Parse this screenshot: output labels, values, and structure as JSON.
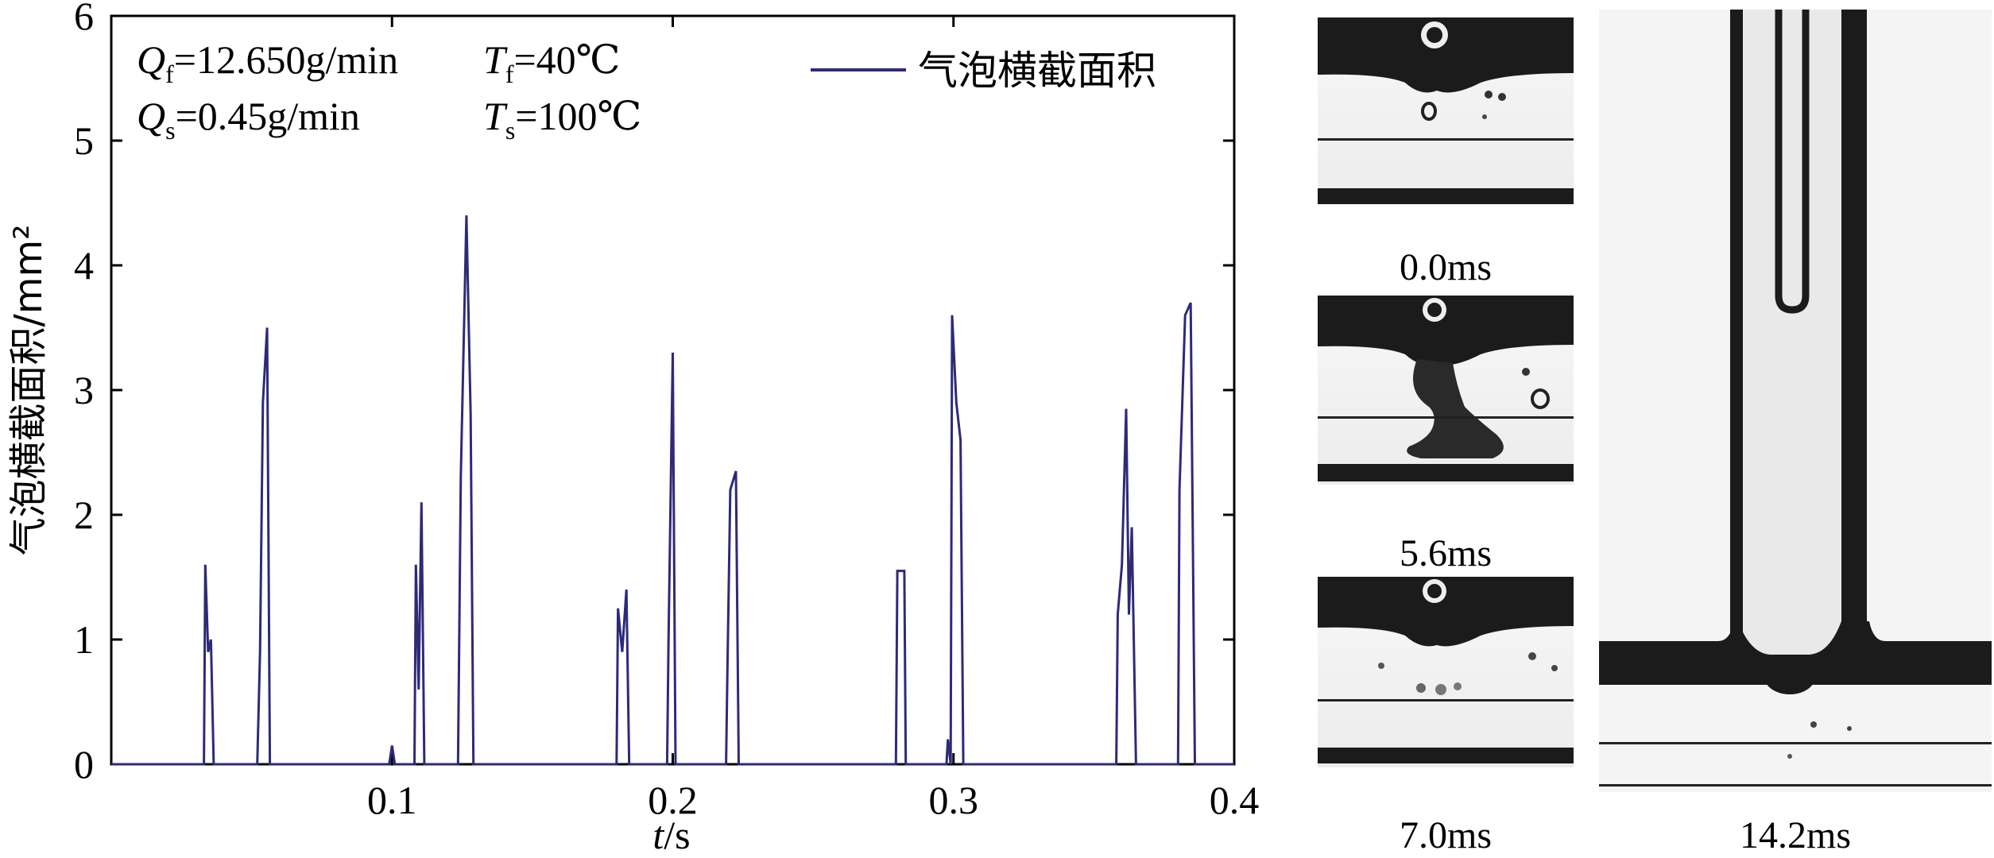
{
  "figure": {
    "chart_data": {
      "type": "line",
      "xlabel_var": "t",
      "xlabel_unit": "/s",
      "ylabel": "气泡横截面积/mm²",
      "xlim": [
        0,
        0.4
      ],
      "ylim": [
        0,
        6
      ],
      "x_ticks": [
        "0.1",
        "0.2",
        "0.3",
        "0.4"
      ],
      "y_ticks": [
        "0",
        "1",
        "2",
        "3",
        "4",
        "5",
        "6"
      ],
      "legend_position": "top-right",
      "grid": false,
      "series": [
        {
          "name": "气泡横截面积",
          "color": "#2e2a78",
          "points": [
            [
              0.0,
              0
            ],
            [
              0.033,
              0
            ],
            [
              0.0335,
              1.6
            ],
            [
              0.0345,
              0.9
            ],
            [
              0.0355,
              1.0
            ],
            [
              0.0365,
              0
            ],
            [
              0.052,
              0
            ],
            [
              0.053,
              0.9
            ],
            [
              0.054,
              2.9
            ],
            [
              0.0555,
              3.5
            ],
            [
              0.0565,
              0
            ],
            [
              0.099,
              0
            ],
            [
              0.1,
              0.15
            ],
            [
              0.101,
              0
            ],
            [
              0.108,
              0
            ],
            [
              0.1085,
              1.6
            ],
            [
              0.1095,
              0.6
            ],
            [
              0.1105,
              2.1
            ],
            [
              0.1115,
              0
            ],
            [
              0.1235,
              0
            ],
            [
              0.1245,
              2.3
            ],
            [
              0.1265,
              4.4
            ],
            [
              0.128,
              2.8
            ],
            [
              0.129,
              0
            ],
            [
              0.18,
              0
            ],
            [
              0.1805,
              1.25
            ],
            [
              0.182,
              0.9
            ],
            [
              0.1835,
              1.4
            ],
            [
              0.1845,
              0
            ],
            [
              0.198,
              0
            ],
            [
              0.1985,
              1.0
            ],
            [
              0.2,
              3.3
            ],
            [
              0.201,
              0
            ],
            [
              0.219,
              0
            ],
            [
              0.2195,
              0.8
            ],
            [
              0.2205,
              2.2
            ],
            [
              0.2225,
              2.35
            ],
            [
              0.2235,
              0
            ],
            [
              0.2795,
              0
            ],
            [
              0.28,
              1.55
            ],
            [
              0.2825,
              1.55
            ],
            [
              0.283,
              0
            ],
            [
              0.2975,
              0
            ],
            [
              0.298,
              0.2
            ],
            [
              0.299,
              0
            ],
            [
              0.2995,
              3.6
            ],
            [
              0.301,
              2.9
            ],
            [
              0.3025,
              2.6
            ],
            [
              0.3035,
              0
            ],
            [
              0.358,
              0
            ],
            [
              0.3585,
              1.2
            ],
            [
              0.36,
              1.6
            ],
            [
              0.3615,
              2.85
            ],
            [
              0.3625,
              1.2
            ],
            [
              0.3635,
              1.9
            ],
            [
              0.365,
              0
            ],
            [
              0.38,
              0
            ],
            [
              0.3805,
              2.2
            ],
            [
              0.3825,
              3.6
            ],
            [
              0.3845,
              3.7
            ],
            [
              0.386,
              0
            ],
            [
              0.4,
              0
            ]
          ]
        }
      ]
    },
    "annotations": {
      "qf_var": "Q",
      "qf_sub": "f",
      "qf_val": "=12.650g/min",
      "tf_var": "T",
      "tf_sub": "f",
      "tf_val": "=40℃",
      "qs_var": "Q",
      "qs_sub": "s",
      "qs_val": "=0.45g/min",
      "ts_var": "T",
      "ts_sub": "s",
      "ts_val": "=100℃"
    },
    "photos": [
      {
        "time_label": "0.0ms"
      },
      {
        "time_label": "5.6ms"
      },
      {
        "time_label": "7.0ms"
      },
      {
        "time_label": "14.2ms"
      }
    ]
  }
}
